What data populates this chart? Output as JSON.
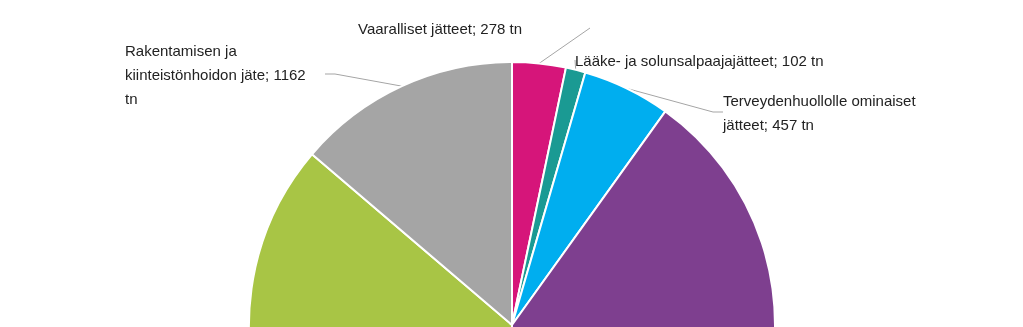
{
  "chart_data": {
    "type": "pie",
    "categories": [
      "Vaaralliset jätteet",
      "Lääke- ja solunsalpaajajätteet",
      "Terveydenhuollolle ominaiset jätteet",
      null,
      null,
      "Rakentamisen ja kiinteistönhoidon jäte"
    ],
    "values": [
      278,
      102,
      457,
      3390,
      3060,
      1162
    ],
    "value_labels": [
      "278 tn",
      "102 tn",
      "457 tn",
      null,
      null,
      "1162 tn"
    ],
    "colors": [
      "#d6157a",
      "#1a9a93",
      "#00aeef",
      "#7e3f8f",
      "#a8c545",
      "#a5a5a5"
    ]
  }
}
